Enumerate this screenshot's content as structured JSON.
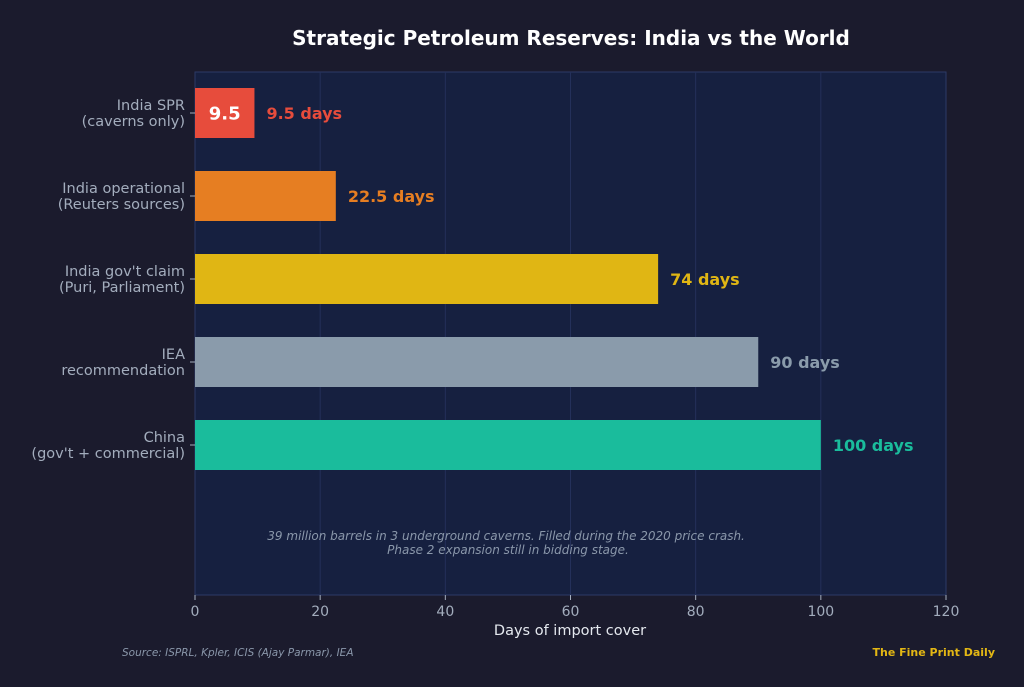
{
  "chart_data": {
    "type": "bar",
    "orientation": "horizontal",
    "title": "Strategic Petroleum Reserves: India vs the World",
    "xlabel": "Days of import cover",
    "ylabel": "",
    "xlim": [
      0,
      120
    ],
    "x_ticks": [
      0,
      20,
      40,
      60,
      80,
      100,
      120
    ],
    "grid": "vertical",
    "categories": [
      [
        "India SPR",
        "(caverns only)"
      ],
      [
        "India operational",
        "(Reuters sources)"
      ],
      [
        "India gov't claim",
        "(Puri, Parliament)"
      ],
      [
        "IEA",
        "recommendation"
      ],
      [
        "China",
        "(gov't + commercial)"
      ]
    ],
    "values": [
      9.5,
      22.5,
      74,
      90,
      100
    ],
    "value_labels": [
      "9.5 days",
      "22.5 days",
      "74 days",
      "90 days",
      "100 days"
    ],
    "bar_inner_labels": [
      "9.5",
      "",
      "",
      "",
      ""
    ],
    "colors": [
      "#e74c3c",
      "#e67e22",
      "#e0b614",
      "#8a9bab",
      "#1abc9c"
    ],
    "annotation": [
      "39 million barrels in 3 underground caverns. Filled during the 2020 price crash.",
      "Phase 2 expansion still in bidding stage."
    ]
  },
  "footer": {
    "source": "Source: ISPRL, Kpler, ICIS (Ajay Parmar), IEA",
    "brand": "The Fine Print Daily"
  },
  "theme": {
    "page_bg": "#1b1b2d",
    "plot_bg": "#162040",
    "plot_border": "#2c3a66",
    "grid": "#24305a"
  }
}
